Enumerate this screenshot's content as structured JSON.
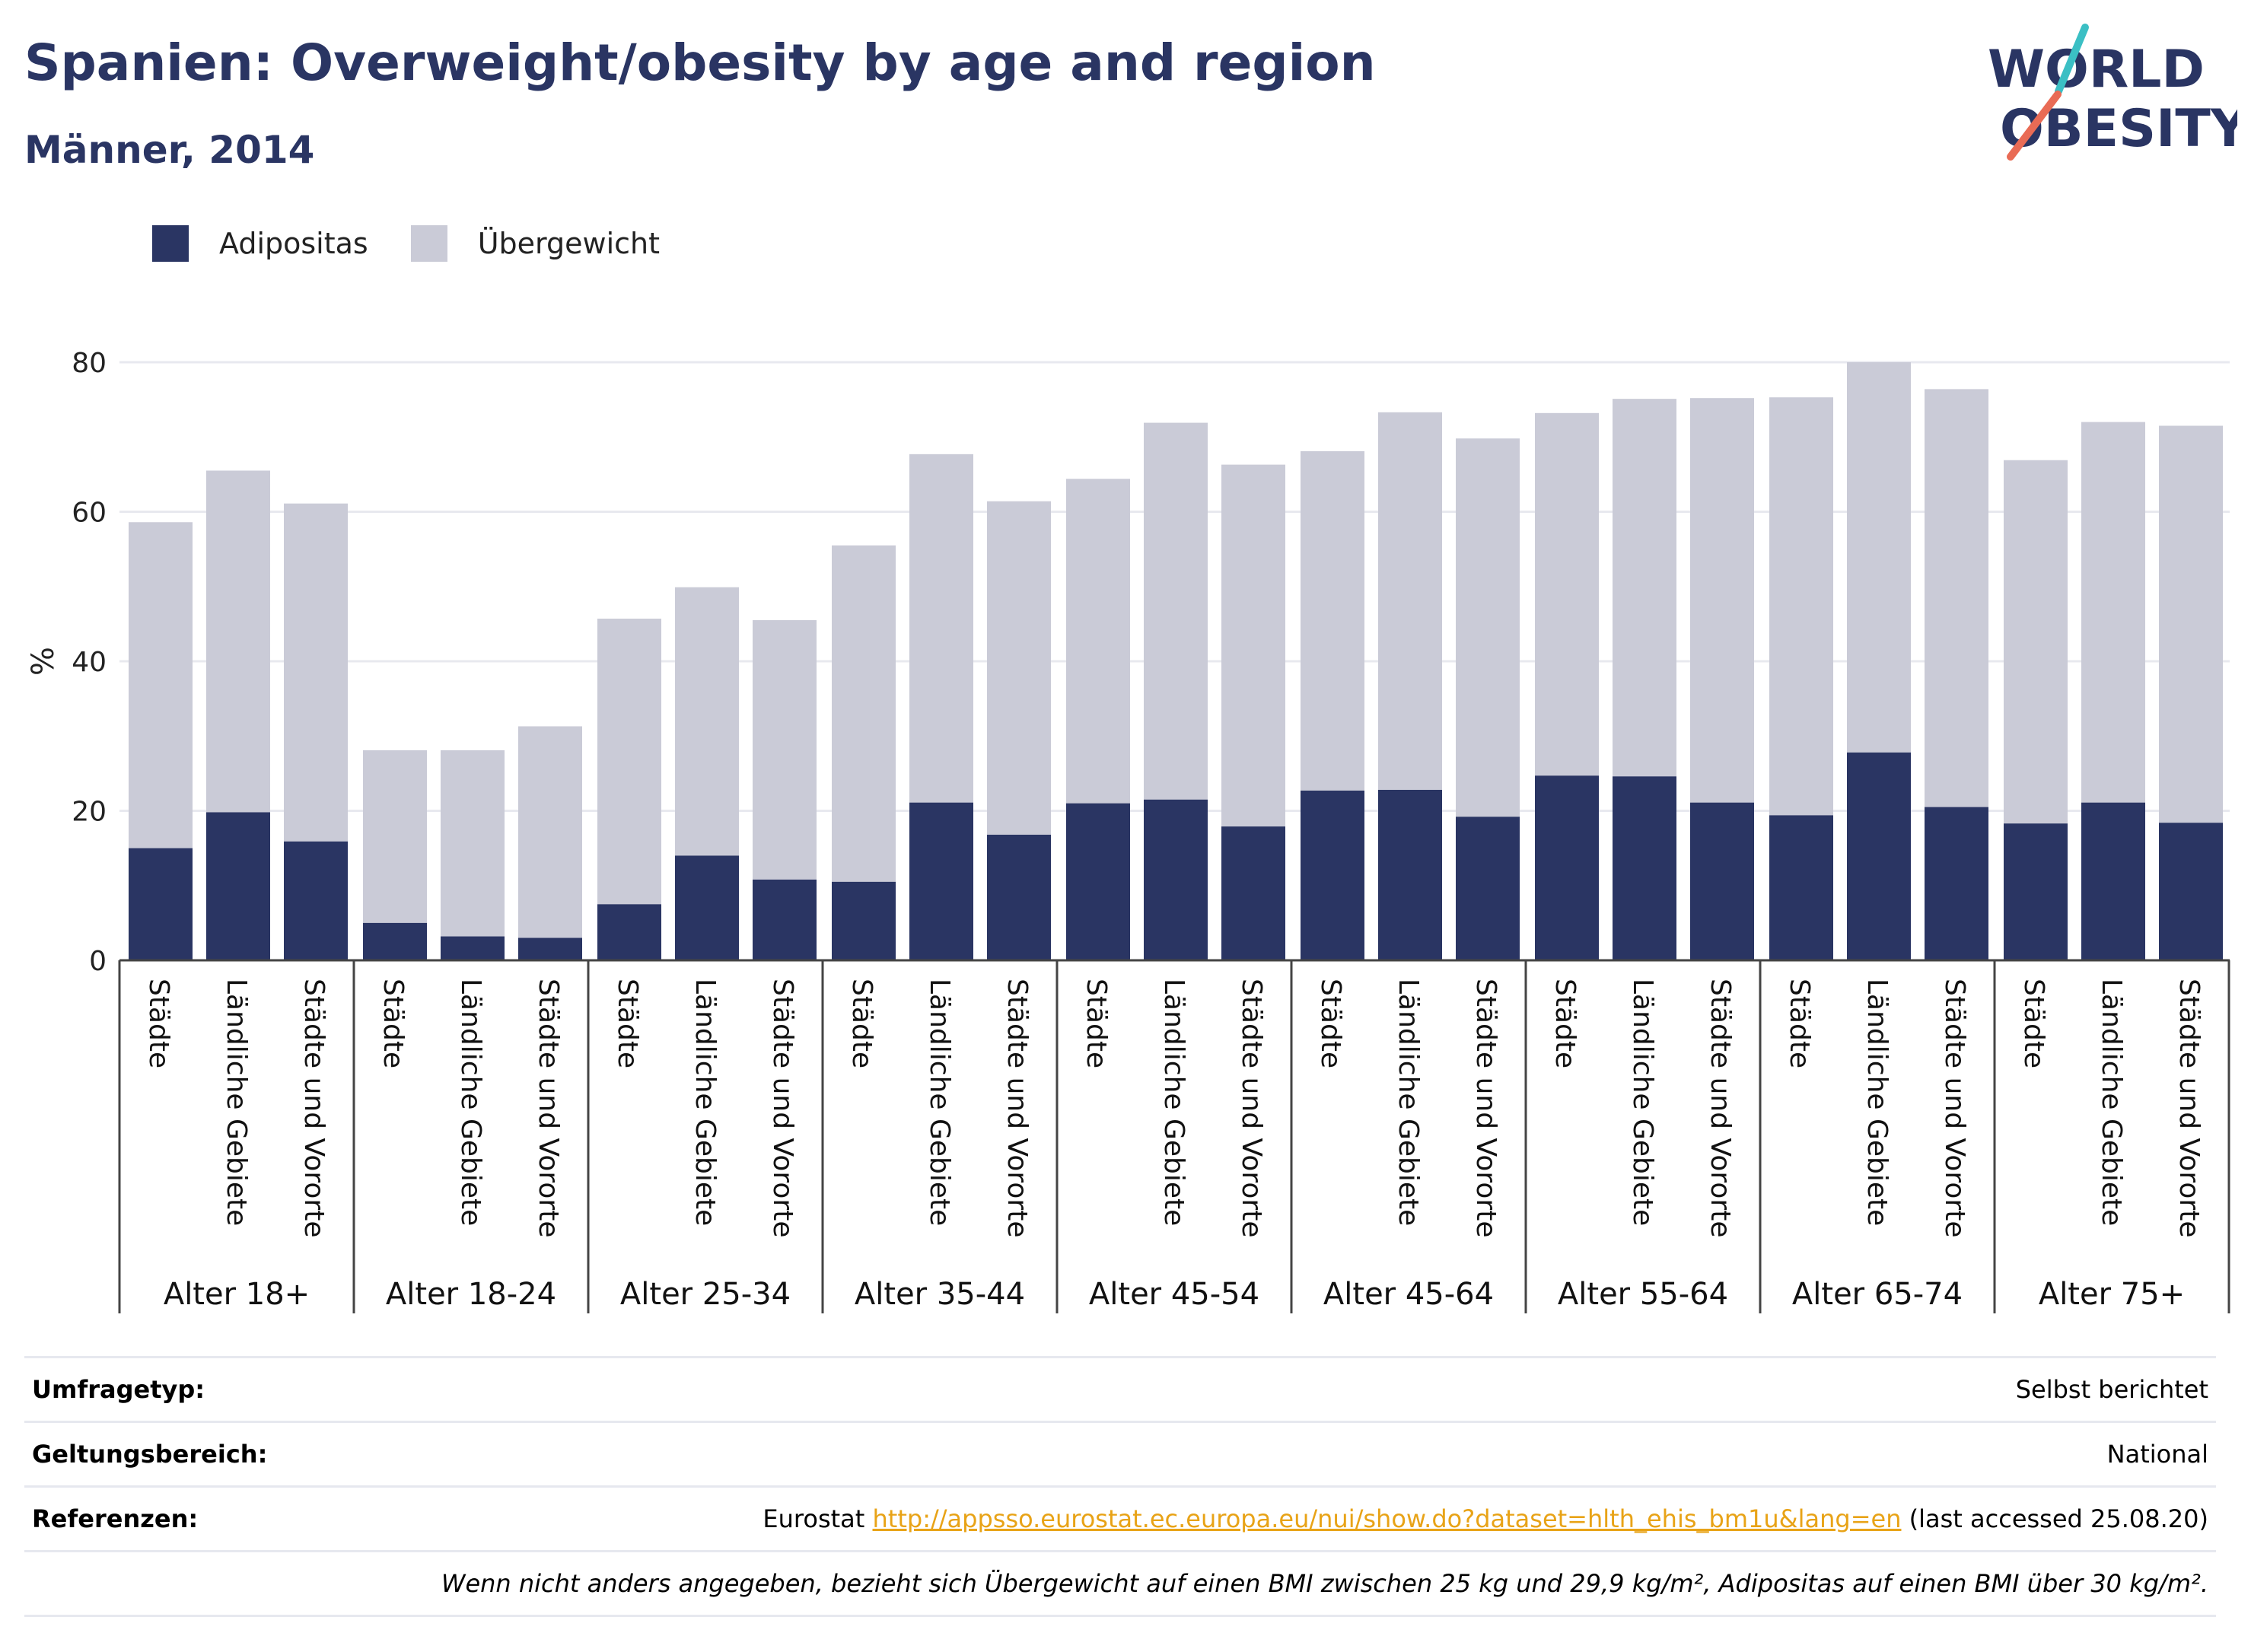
{
  "title": "Spanien: Overweight/obesity by age and region",
  "subtitle": "Männer, 2014",
  "logo": {
    "line1": "WORLD",
    "line2": "OBESITY",
    "stripe_colors": [
      "#3bbfc4",
      "#e96b55"
    ]
  },
  "colors": {
    "navy": "#2a3563",
    "grey": "#cacbd7",
    "axis": "#444444",
    "grid": "#e8e9ef",
    "link": "#e8a317"
  },
  "chart_data": {
    "type": "bar",
    "stacked": true,
    "ylabel": "%",
    "ylim": [
      0,
      80
    ],
    "yticks": [
      0,
      20,
      40,
      60,
      80
    ],
    "grid": true,
    "legend_position": "top-left",
    "groups": [
      {
        "label": "Alter 18+",
        "bars": [
          {
            "label": "Städte",
            "obesity": 15.0,
            "total": 58.6
          },
          {
            "label": "Ländliche Gebiete",
            "obesity": 19.8,
            "total": 65.5
          },
          {
            "label": "Städte und Vororte",
            "obesity": 15.9,
            "total": 61.1
          }
        ]
      },
      {
        "label": "Alter 18-24",
        "bars": [
          {
            "label": "Städte",
            "obesity": 5.0,
            "total": 28.1
          },
          {
            "label": "Ländliche Gebiete",
            "obesity": 3.2,
            "total": 28.1
          },
          {
            "label": "Städte und Vororte",
            "obesity": 3.0,
            "total": 31.3
          }
        ]
      },
      {
        "label": "Alter 25-34",
        "bars": [
          {
            "label": "Städte",
            "obesity": 7.5,
            "total": 45.7
          },
          {
            "label": "Ländliche Gebiete",
            "obesity": 14.0,
            "total": 49.9
          },
          {
            "label": "Städte und Vororte",
            "obesity": 10.8,
            "total": 45.5
          }
        ]
      },
      {
        "label": "Alter 35-44",
        "bars": [
          {
            "label": "Städte",
            "obesity": 10.5,
            "total": 55.5
          },
          {
            "label": "Ländliche Gebiete",
            "obesity": 21.1,
            "total": 67.7
          },
          {
            "label": "Städte und Vororte",
            "obesity": 16.8,
            "total": 61.4
          }
        ]
      },
      {
        "label": "Alter 45-54",
        "bars": [
          {
            "label": "Städte",
            "obesity": 21.0,
            "total": 64.4
          },
          {
            "label": "Ländliche Gebiete",
            "obesity": 21.5,
            "total": 71.9
          },
          {
            "label": "Städte und Vororte",
            "obesity": 17.9,
            "total": 66.3
          }
        ]
      },
      {
        "label": "Alter 45-64",
        "bars": [
          {
            "label": "Städte",
            "obesity": 22.7,
            "total": 68.1
          },
          {
            "label": "Ländliche Gebiete",
            "obesity": 22.8,
            "total": 73.3
          },
          {
            "label": "Städte und Vororte",
            "obesity": 19.2,
            "total": 69.8
          }
        ]
      },
      {
        "label": "Alter 55-64",
        "bars": [
          {
            "label": "Städte",
            "obesity": 24.7,
            "total": 73.2
          },
          {
            "label": "Ländliche Gebiete",
            "obesity": 24.6,
            "total": 75.1
          },
          {
            "label": "Städte und Vororte",
            "obesity": 21.1,
            "total": 75.2
          }
        ]
      },
      {
        "label": "Alter 65-74",
        "bars": [
          {
            "label": "Städte",
            "obesity": 19.4,
            "total": 75.3
          },
          {
            "label": "Ländliche Gebiete",
            "obesity": 27.8,
            "total": 80.0
          },
          {
            "label": "Städte und Vororte",
            "obesity": 20.5,
            "total": 76.4
          }
        ]
      },
      {
        "label": "Alter 75+",
        "bars": [
          {
            "label": "Städte",
            "obesity": 18.3,
            "total": 66.9
          },
          {
            "label": "Ländliche Gebiete",
            "obesity": 21.1,
            "total": 72.0
          },
          {
            "label": "Städte und Vororte",
            "obesity": 18.4,
            "total": 71.5
          }
        ]
      }
    ],
    "series": [
      {
        "name": "Adipositas",
        "color": "#2a3563"
      },
      {
        "name": "Übergewicht",
        "color": "#cacbd7"
      }
    ]
  },
  "footer": {
    "survey_label": "Umfragetyp:",
    "survey_value": "Selbst berichtet",
    "scope_label": "Geltungsbereich:",
    "scope_value": "National",
    "refs_label": "Referenzen:",
    "refs_prefix": "Eurostat",
    "refs_link": "http://appsso.eurostat.ec.europa.eu/nui/show.do?dataset=hlth_ehis_bm1u&lang=en",
    "refs_suffix": "(last accessed 25.08.20)",
    "note": "Wenn nicht anders angegeben, bezieht sich Übergewicht auf einen BMI zwischen 25 kg und 29,9 kg/m², Adipositas auf einen BMI über 30 kg/m²."
  }
}
